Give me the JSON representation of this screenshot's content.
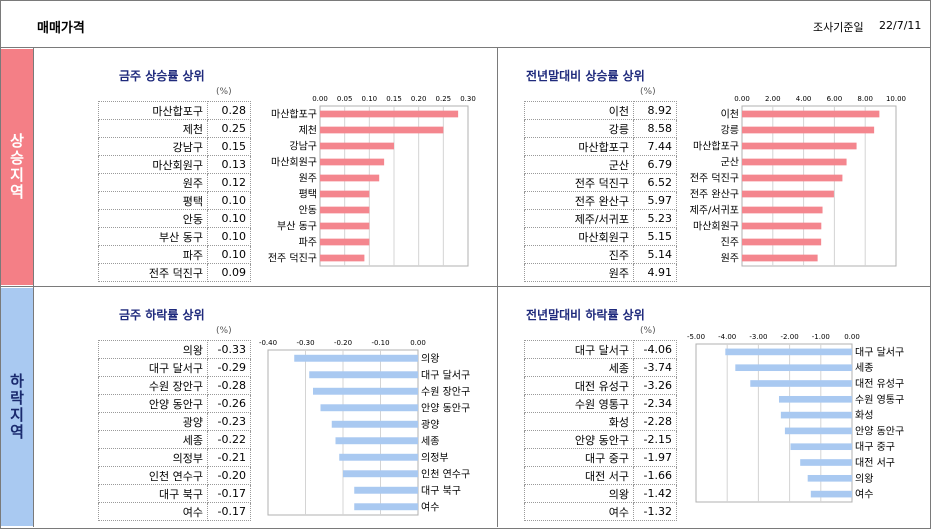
{
  "header": {
    "title": "매매가격",
    "survey_label": "조사기준일",
    "survey_date": "22/7/11"
  },
  "sections": {
    "rise_label": "상승지역",
    "fall_label": "하락지역"
  },
  "panels": [
    {
      "title": "금주 상승률 상위",
      "unit": "(%)",
      "table": [
        {
          "name": "마산합포구",
          "value": "0.28"
        },
        {
          "name": "제천",
          "value": "0.25"
        },
        {
          "name": "강남구",
          "value": "0.15"
        },
        {
          "name": "마산회원구",
          "value": "0.13"
        },
        {
          "name": "원주",
          "value": "0.12"
        },
        {
          "name": "평택",
          "value": "0.10"
        },
        {
          "name": "안동",
          "value": "0.10"
        },
        {
          "name": "부산 동구",
          "value": "0.10"
        },
        {
          "name": "파주",
          "value": "0.10"
        },
        {
          "name": "전주 덕진구",
          "value": "0.09"
        }
      ]
    },
    {
      "title": "전년말대비 상승률 상위",
      "unit": "(%)",
      "table": [
        {
          "name": "이천",
          "value": "8.92"
        },
        {
          "name": "강릉",
          "value": "8.58"
        },
        {
          "name": "마산합포구",
          "value": "7.44"
        },
        {
          "name": "군산",
          "value": "6.79"
        },
        {
          "name": "전주 덕진구",
          "value": "6.52"
        },
        {
          "name": "전주 완산구",
          "value": "5.97"
        },
        {
          "name": "제주/서귀포",
          "value": "5.23"
        },
        {
          "name": "마산회원구",
          "value": "5.15"
        },
        {
          "name": "진주",
          "value": "5.14"
        },
        {
          "name": "원주",
          "value": "4.91"
        }
      ]
    },
    {
      "title": "금주 하락률 상위",
      "unit": "(%)",
      "table": [
        {
          "name": "의왕",
          "value": "-0.33"
        },
        {
          "name": "대구 달서구",
          "value": "-0.29"
        },
        {
          "name": "수원 장안구",
          "value": "-0.28"
        },
        {
          "name": "안양 동안구",
          "value": "-0.26"
        },
        {
          "name": "광양",
          "value": "-0.23"
        },
        {
          "name": "세종",
          "value": "-0.22"
        },
        {
          "name": "의정부",
          "value": "-0.21"
        },
        {
          "name": "인천 연수구",
          "value": "-0.20"
        },
        {
          "name": "대구 북구",
          "value": "-0.17"
        },
        {
          "name": "여수",
          "value": "-0.17"
        }
      ]
    },
    {
      "title": "전년말대비 하락률 상위",
      "unit": "(%)",
      "table": [
        {
          "name": "대구 달서구",
          "value": "-4.06"
        },
        {
          "name": "세종",
          "value": "-3.74"
        },
        {
          "name": "대전 유성구",
          "value": "-3.26"
        },
        {
          "name": "수원 영통구",
          "value": "-2.34"
        },
        {
          "name": "화성",
          "value": "-2.28"
        },
        {
          "name": "안양 동안구",
          "value": "-2.15"
        },
        {
          "name": "대구 중구",
          "value": "-1.97"
        },
        {
          "name": "대전 서구",
          "value": "-1.66"
        },
        {
          "name": "의왕",
          "value": "-1.42"
        },
        {
          "name": "여수",
          "value": "-1.32"
        }
      ]
    }
  ],
  "chart_data": [
    {
      "type": "bar",
      "orientation": "horizontal",
      "title": "금주 상승률 상위",
      "categories": [
        "마산합포구",
        "제천",
        "강남구",
        "마산회원구",
        "원주",
        "평택",
        "안동",
        "부산 동구",
        "파주",
        "전주 덕진구"
      ],
      "values": [
        0.28,
        0.25,
        0.15,
        0.13,
        0.12,
        0.1,
        0.1,
        0.1,
        0.1,
        0.09
      ],
      "xlim": [
        0,
        0.3
      ],
      "ticks": [
        "0.00",
        "0.05",
        "0.10",
        "0.15",
        "0.20",
        "0.25",
        "0.30"
      ],
      "label_side": "left",
      "grid": true,
      "color": "#f4868e"
    },
    {
      "type": "bar",
      "orientation": "horizontal",
      "title": "전년말대비 상승률 상위",
      "categories": [
        "이천",
        "강릉",
        "마산합포구",
        "군산",
        "전주 덕진구",
        "전주 완산구",
        "제주/서귀포",
        "마산회원구",
        "진주",
        "원주"
      ],
      "values": [
        8.92,
        8.58,
        7.44,
        6.79,
        6.52,
        5.97,
        5.23,
        5.15,
        5.14,
        4.91
      ],
      "xlim": [
        0,
        10
      ],
      "ticks": [
        "0.00",
        "2.00",
        "4.00",
        "6.00",
        "8.00",
        "10.00"
      ],
      "label_side": "left",
      "grid": true,
      "color": "#f4868e"
    },
    {
      "type": "bar",
      "orientation": "horizontal",
      "title": "금주 하락률 상위",
      "categories": [
        "의왕",
        "대구 달서구",
        "수원 장안구",
        "안양 동안구",
        "광양",
        "세종",
        "의정부",
        "인천 연수구",
        "대구 북구",
        "여수"
      ],
      "values": [
        -0.33,
        -0.29,
        -0.28,
        -0.26,
        -0.23,
        -0.22,
        -0.21,
        -0.2,
        -0.17,
        -0.17
      ],
      "xlim": [
        -0.4,
        0
      ],
      "ticks": [
        "-0.40",
        "-0.30",
        "-0.20",
        "-0.10",
        "0.00"
      ],
      "label_side": "right",
      "grid": true,
      "color": "#a9c9f1"
    },
    {
      "type": "bar",
      "orientation": "horizontal",
      "title": "전년말대비 하락률 상위",
      "categories": [
        "대구 달서구",
        "세종",
        "대전 유성구",
        "수원 영통구",
        "화성",
        "안양 동안구",
        "대구 중구",
        "대전 서구",
        "의왕",
        "여수"
      ],
      "values": [
        -4.06,
        -3.74,
        -3.26,
        -2.34,
        -2.28,
        -2.15,
        -1.97,
        -1.66,
        -1.42,
        -1.32
      ],
      "xlim": [
        -5,
        0
      ],
      "ticks": [
        "-5.00",
        "-4.00",
        "-3.00",
        "-2.00",
        "-1.00",
        "0.00"
      ],
      "label_side": "right",
      "grid": true,
      "color": "#a9c9f1"
    }
  ]
}
